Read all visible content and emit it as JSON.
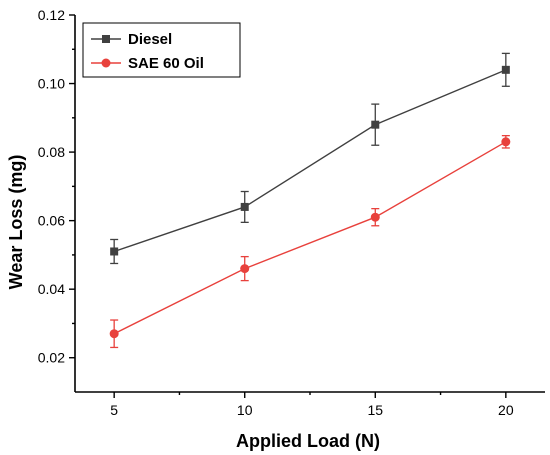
{
  "chart_data": {
    "type": "line",
    "x": [
      5,
      10,
      15,
      20
    ],
    "xticks": [
      "5",
      "10",
      "15",
      "20"
    ],
    "yticks": [
      "0.02",
      "0.04",
      "0.06",
      "0.08",
      "0.10",
      "0.12"
    ],
    "xlabel": "Applied Load (N)",
    "ylabel": "Wear Loss (mg)",
    "xlim": [
      3.5,
      21.5
    ],
    "ylim": [
      0.01,
      0.12
    ],
    "grid": false,
    "legend_position": "top-left",
    "series": [
      {
        "name": "Diesel",
        "values": [
          0.051,
          0.064,
          0.088,
          0.104
        ],
        "errors": [
          0.0035,
          0.0045,
          0.006,
          0.0048
        ],
        "color": "#404040",
        "marker": "square"
      },
      {
        "name": "SAE 60 Oil",
        "values": [
          0.027,
          0.046,
          0.061,
          0.083
        ],
        "errors": [
          0.004,
          0.0035,
          0.0025,
          0.0018
        ],
        "color": "#e8413c",
        "marker": "circle"
      }
    ]
  }
}
